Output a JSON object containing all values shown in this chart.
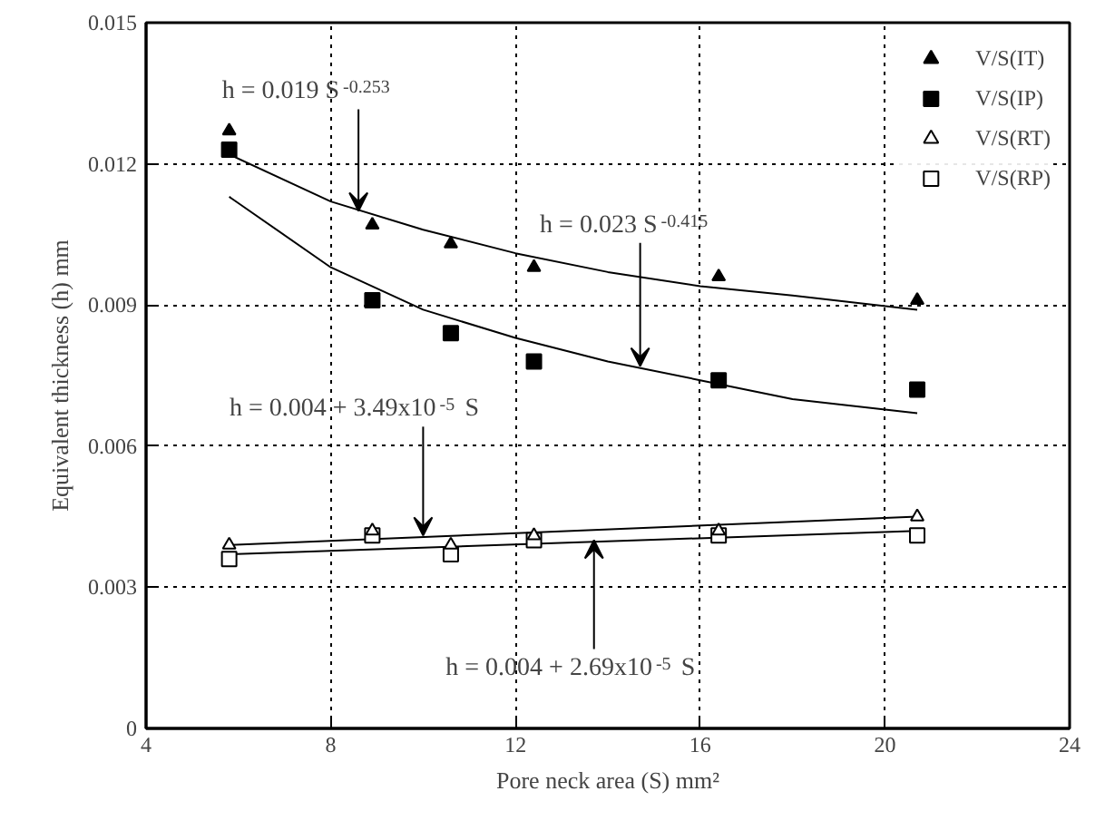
{
  "chart_data": {
    "type": "scatter",
    "xlabel": "Pore neck area (S) mm²",
    "ylabel": "Equivalent thickness (h) mm",
    "xlim": [
      4,
      24
    ],
    "xticks": [
      4,
      8,
      12,
      16,
      20,
      24
    ],
    "ylim": [
      0,
      0.015
    ],
    "yticks": [
      0,
      0.003,
      0.006,
      0.009,
      0.012,
      0.015
    ],
    "grid": true,
    "legend": "top right",
    "x": [
      5.8,
      8.9,
      10.6,
      12.4,
      16.4,
      20.7
    ],
    "series": [
      {
        "name": "V/S(IT)",
        "color": "#000000",
        "marker": "triangle",
        "values": [
          0.0127,
          0.0107,
          0.0103,
          0.0098,
          0.0096,
          0.0091
        ]
      },
      {
        "name": "V/S(IP)",
        "color": "#000000",
        "marker": "square",
        "values": [
          0.0123,
          0.0091,
          0.0084,
          0.0078,
          0.0074,
          0.0072
        ]
      },
      {
        "name": "V/S(RT)",
        "color": "#ffffff",
        "marker": "triangle",
        "values": [
          0.0039,
          0.0042,
          0.0039,
          0.0041,
          0.0042,
          0.0045
        ]
      },
      {
        "name": "V/S(RP)",
        "color": "#ffffff",
        "marker": "square",
        "values": [
          0.0036,
          0.0041,
          0.0037,
          0.004,
          0.0041,
          0.0041
        ]
      },
      {
        "type": "line",
        "color": "#000000",
        "x": [
          5.8,
          8,
          10,
          12,
          14,
          16,
          18,
          20.7
        ],
        "values": [
          0.0122,
          0.0112,
          0.0106,
          0.0101,
          0.0097,
          0.0094,
          0.0092,
          0.0089
        ]
      },
      {
        "type": "line",
        "color": "#000000",
        "x": [
          5.8,
          8,
          10,
          12,
          14,
          16,
          18,
          20.7
        ],
        "values": [
          0.0113,
          0.0098,
          0.0089,
          0.0083,
          0.0078,
          0.0074,
          0.007,
          0.0067
        ]
      },
      {
        "type": "line",
        "color": "#000000",
        "x": [
          5.8,
          20.7
        ],
        "values": [
          0.0039,
          0.0045
        ]
      },
      {
        "type": "line",
        "color": "#000000",
        "x": [
          5.8,
          20.7
        ],
        "values": [
          0.0037,
          0.0042
        ]
      }
    ],
    "annotations": [
      {
        "text": "h = 0.019 S$^{-0.253}$",
        "x": 8.6,
        "y": 0.011
      },
      {
        "text": "h = 0.023 S$^{-0.415}$",
        "x": 14.7,
        "y": 0.0077
      },
      {
        "text": "h = 0.004 + 3.49x10$^{-5}$ S",
        "x": 10.0,
        "y": 0.0041
      },
      {
        "text": "h = 0.004 + 2.69x10$^{-5}$ S",
        "x": 13.7,
        "y": 0.004
      }
    ]
  }
}
